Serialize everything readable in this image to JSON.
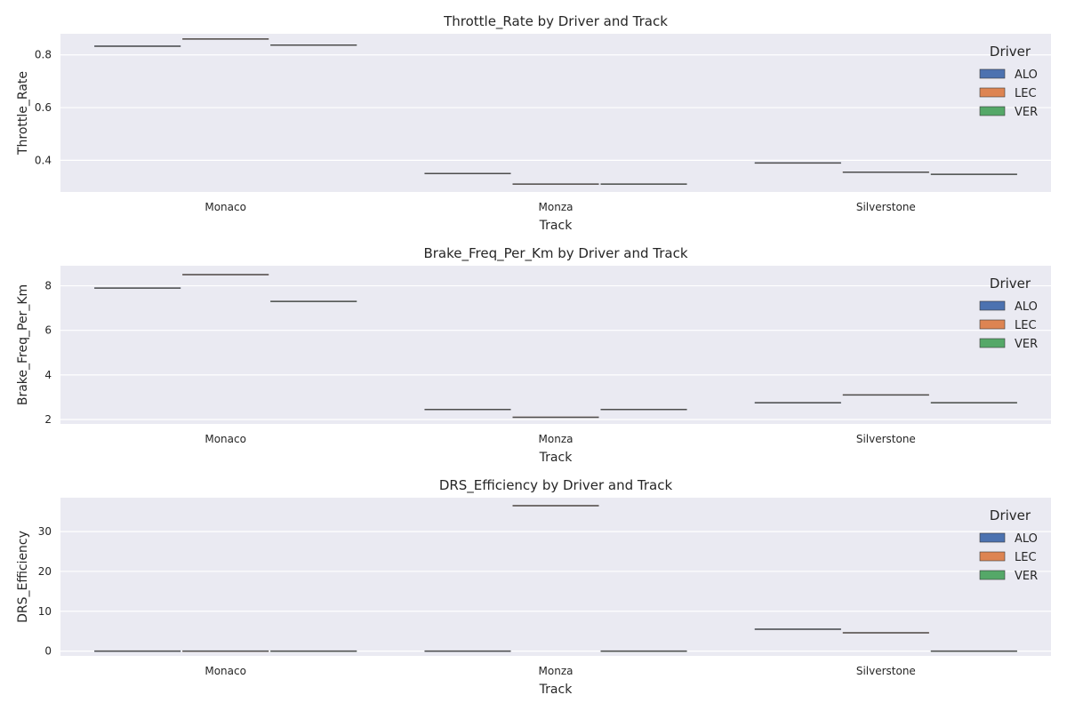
{
  "colors": {
    "background": "#eaeaf2",
    "grid": "#ffffff",
    "ALO": "#4c72b0",
    "LEC": "#dd8452",
    "VER": "#55a868",
    "median": "#4d4d4d"
  },
  "chart_data": [
    {
      "type": "box",
      "title": "Throttle_Rate by Driver and Track",
      "xlabel": "Track",
      "ylabel": "Throttle_Rate",
      "categories": [
        "Monaco",
        "Monza",
        "Silverstone"
      ],
      "hue_title": "Driver",
      "ylim": [
        0.28,
        0.88
      ],
      "yticks": [
        0.4,
        0.6,
        0.8
      ],
      "ytick_labels": [
        "0.4",
        "0.6",
        "0.8"
      ],
      "grid": true,
      "legend_position": "top-right",
      "series": [
        {
          "name": "ALO",
          "values": [
            0.833,
            0.35,
            0.39
          ]
        },
        {
          "name": "LEC",
          "values": [
            0.86,
            0.31,
            0.355
          ]
        },
        {
          "name": "VER",
          "values": [
            0.837,
            0.31,
            0.347
          ]
        }
      ]
    },
    {
      "type": "box",
      "title": "Brake_Freq_Per_Km by Driver and Track",
      "xlabel": "Track",
      "ylabel": "Brake_Freq_Per_Km",
      "categories": [
        "Monaco",
        "Monza",
        "Silverstone"
      ],
      "hue_title": "Driver",
      "ylim": [
        1.8,
        8.9
      ],
      "yticks": [
        2,
        4,
        6,
        8
      ],
      "ytick_labels": [
        "2",
        "4",
        "6",
        "8"
      ],
      "grid": true,
      "legend_position": "top-right",
      "series": [
        {
          "name": "ALO",
          "values": [
            7.9,
            2.45,
            2.75
          ]
        },
        {
          "name": "LEC",
          "values": [
            8.5,
            2.1,
            3.1
          ]
        },
        {
          "name": "VER",
          "values": [
            7.3,
            2.45,
            2.75
          ]
        }
      ]
    },
    {
      "type": "box",
      "title": "DRS_Efficiency by Driver and Track",
      "xlabel": "Track",
      "ylabel": "DRS_Efficiency",
      "categories": [
        "Monaco",
        "Monza",
        "Silverstone"
      ],
      "hue_title": "Driver",
      "ylim": [
        -1.2,
        38.5
      ],
      "yticks": [
        0,
        10,
        20,
        30
      ],
      "ytick_labels": [
        "0",
        "10",
        "20",
        "30"
      ],
      "grid": true,
      "legend_position": "top-right",
      "series": [
        {
          "name": "ALO",
          "values": [
            0,
            0,
            5.5
          ]
        },
        {
          "name": "LEC",
          "values": [
            0,
            36.5,
            4.6
          ]
        },
        {
          "name": "VER",
          "values": [
            0,
            0,
            0
          ]
        }
      ]
    }
  ]
}
